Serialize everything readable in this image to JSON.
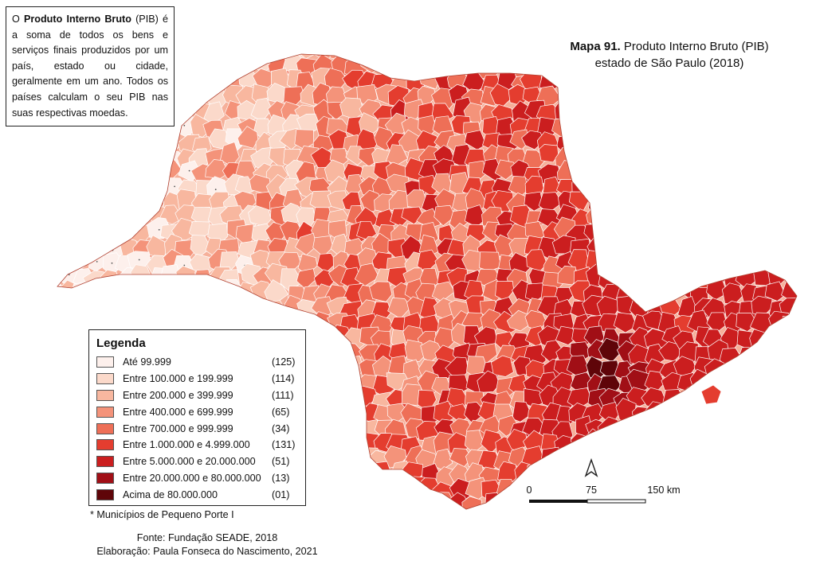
{
  "info_box": {
    "part1": "O ",
    "bold": "Produto Interno Bruto",
    "part2": " (PIB) é a soma de todos os bens e serviços finais produzidos por um país, estado ou cidade, geralmente em um ano. Todos os países calculam o seu PIB nas suas respectivas moedas."
  },
  "title": {
    "label": "Mapa 91.",
    "line1": " Produto Interno Bruto (PIB)",
    "line2": "estado de São Paulo (2018)"
  },
  "legend": {
    "title": "Legenda",
    "items": [
      {
        "label": "Até 99.999",
        "count": "(125)",
        "color": "#fdf0ec"
      },
      {
        "label": "Entre 100.000 e 199.999",
        "count": "(114)",
        "color": "#fbd9ca"
      },
      {
        "label": "Entre 200.000 e 399.999",
        "count": "(111)",
        "color": "#f8b79f"
      },
      {
        "label": "Entre 400.000 e 699.999",
        "count": "(65)",
        "color": "#f4937a"
      },
      {
        "label": "Entre 700.000 e 999.999",
        "count": "(34)",
        "color": "#ee6f57"
      },
      {
        "label": "Entre 1.000.000 e 4.999.000",
        "count": "(131)",
        "color": "#e43d2f"
      },
      {
        "label": "Entre 5.000.000 e 20.000.000",
        "count": "(51)",
        "color": "#cb1e1f"
      },
      {
        "label": "Entre 20.000.000 e 80.000.000",
        "count": "(13)",
        "color": "#a10f16"
      },
      {
        "label": "Acima de 80.000.000",
        "count": "(01)",
        "color": "#5f0509"
      }
    ]
  },
  "footnote": "* Municípios de Pequeno Porte I",
  "credits": {
    "source": "Fonte: Fundação SEADE, 2018",
    "author": "Elaboração: Paula Fonseca do Nascimento, 2021"
  },
  "scale_bar": {
    "labels": [
      "0",
      "75",
      "150 km"
    ]
  },
  "north_arrow": {
    "icon": "north-arrow-icon"
  },
  "map": {
    "region": "estado de São Paulo",
    "outline_color": "#ffffff",
    "fill_classes": [
      "#fdf0ec",
      "#fbd9ca",
      "#f8b79f",
      "#f4937a",
      "#ee6f57",
      "#e43d2f",
      "#cb1e1f",
      "#a10f16",
      "#5f0509"
    ]
  }
}
